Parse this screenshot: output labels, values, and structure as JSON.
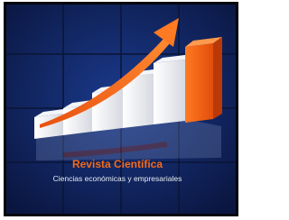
{
  "logo": {
    "title": "Revista Científica",
    "subtitle": "Ciencias económicas y empresariales"
  }
}
